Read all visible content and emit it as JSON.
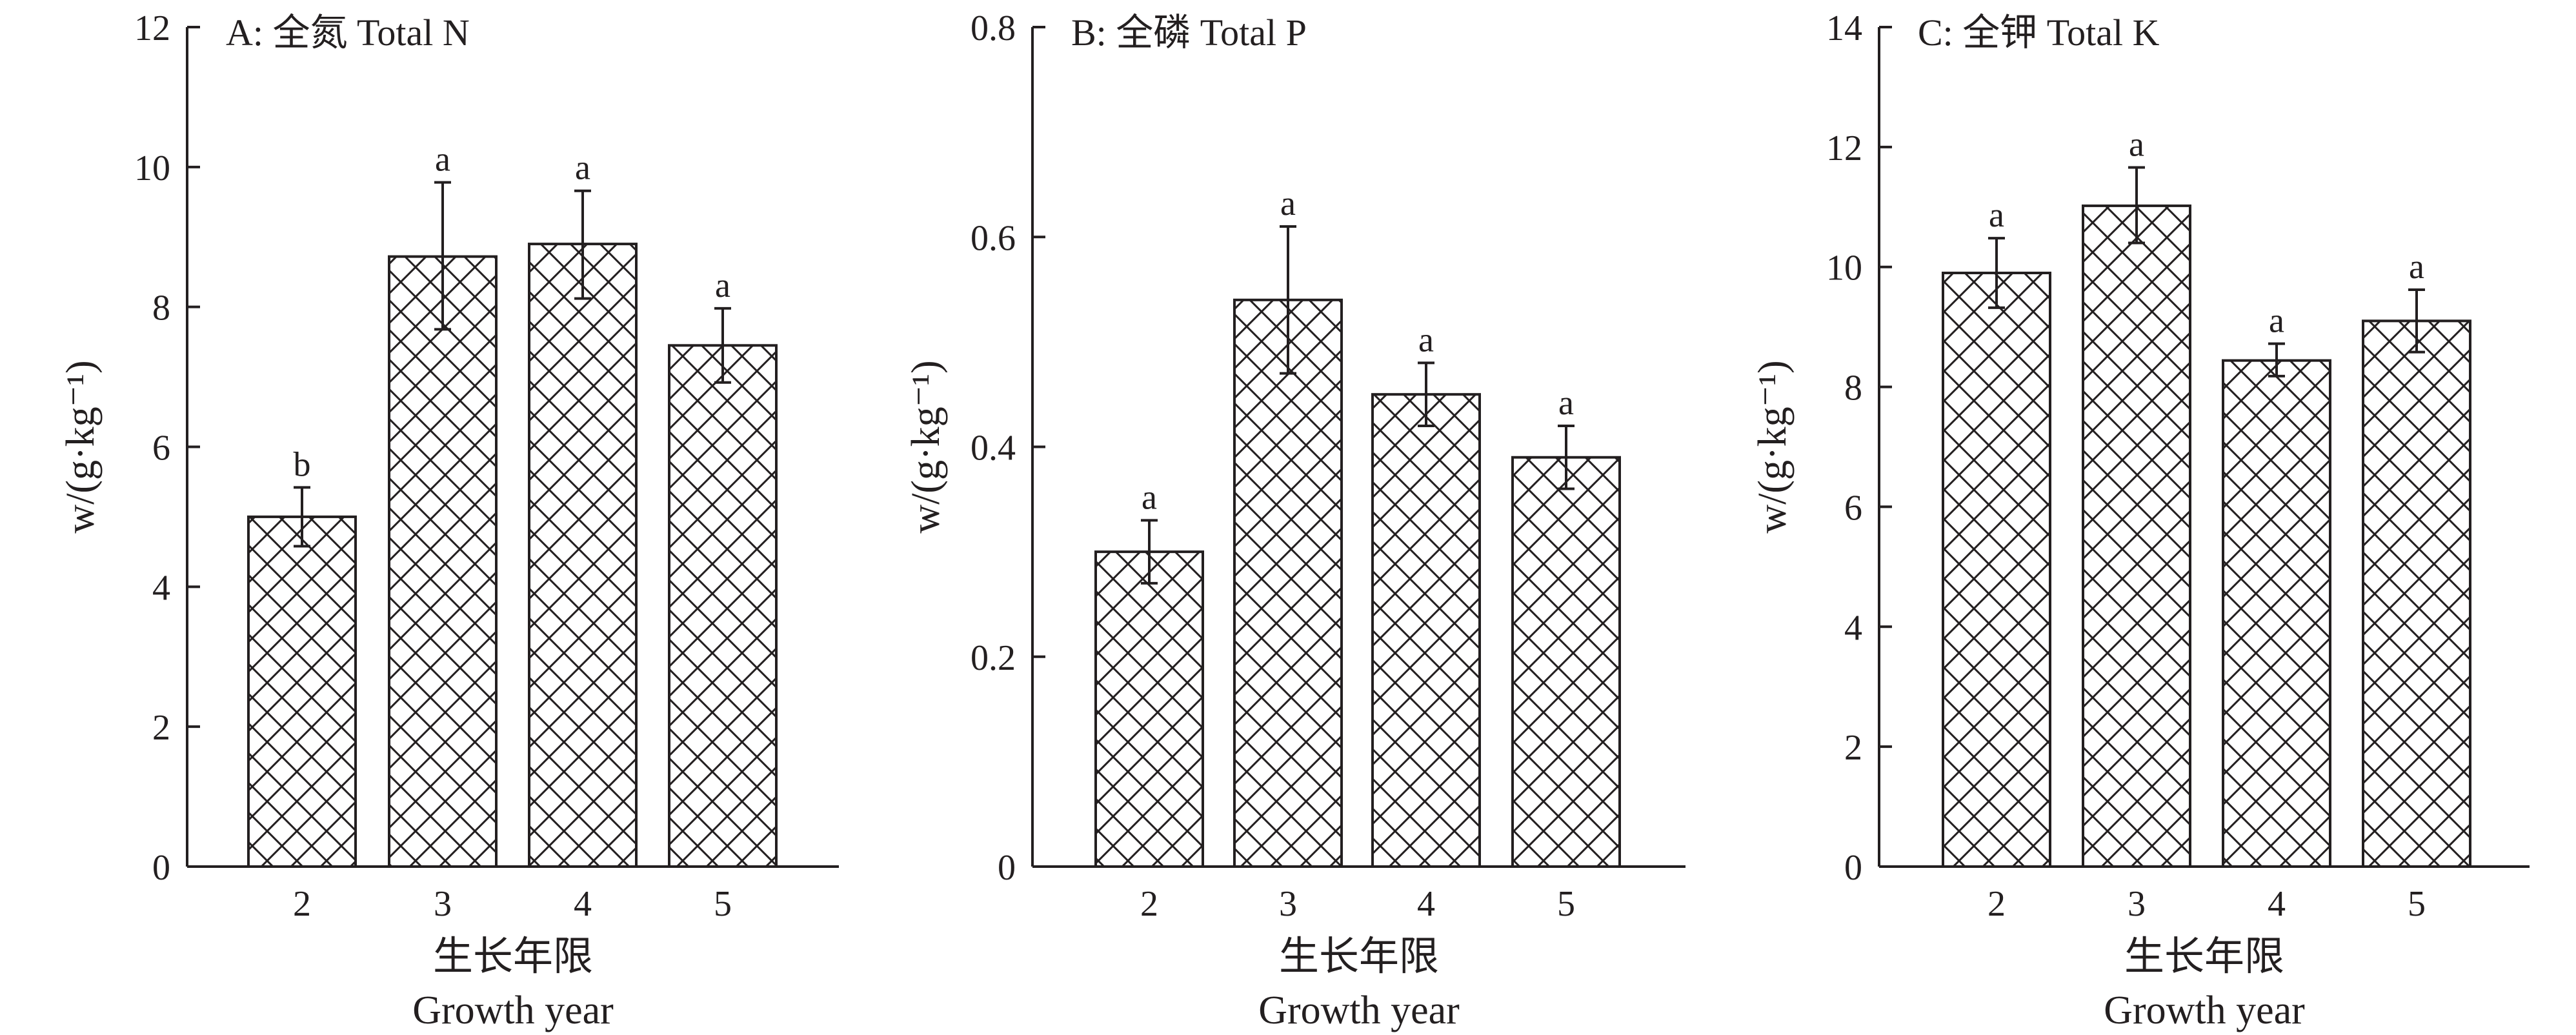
{
  "colors": {
    "ink": "#231f20",
    "background": "#ffffff"
  },
  "chart_data": [
    {
      "type": "bar",
      "title": "A: 全氮 Total N",
      "ylabel": "w/(g·kg⁻¹)",
      "xlabel": "生长年限",
      "xlabel_en": "Growth year",
      "categories": [
        "2",
        "3",
        "4",
        "5"
      ],
      "values": [
        5.0,
        8.72,
        8.9,
        7.45
      ],
      "error_low": [
        4.58,
        7.68,
        8.12,
        6.92
      ],
      "error_high": [
        5.42,
        9.78,
        9.66,
        7.98
      ],
      "significance": [
        "b",
        "a",
        "a",
        "a"
      ],
      "ylim": [
        0,
        12
      ],
      "yticks": [
        "0",
        "2",
        "4",
        "6",
        "8",
        "10",
        "12"
      ],
      "ytick_values": [
        0,
        2,
        4,
        6,
        8,
        10,
        12
      ],
      "bar_fill": "cross-hatch",
      "grid": false,
      "legend": "none"
    },
    {
      "type": "bar",
      "title": "B: 全磷 Total P",
      "ylabel": "w/(g·kg⁻¹)",
      "xlabel": "生长年限",
      "xlabel_en": "Growth year",
      "categories": [
        "2",
        "3",
        "4",
        "5"
      ],
      "values": [
        0.3,
        0.54,
        0.45,
        0.39
      ],
      "error_low": [
        0.27,
        0.47,
        0.42,
        0.36
      ],
      "error_high": [
        0.33,
        0.61,
        0.48,
        0.42
      ],
      "significance": [
        "a",
        "a",
        "a",
        "a"
      ],
      "ylim": [
        0,
        0.8
      ],
      "yticks": [
        "0",
        "0.2",
        "0.4",
        "0.6",
        "0.8"
      ],
      "ytick_values": [
        0,
        0.2,
        0.4,
        0.6,
        0.8
      ],
      "bar_fill": "cross-hatch",
      "grid": false,
      "legend": "none"
    },
    {
      "type": "bar",
      "title": "C: 全钾 Total K",
      "ylabel": "w/(g·kg⁻¹)",
      "xlabel": "生长年限",
      "xlabel_en": "Growth year",
      "categories": [
        "2",
        "3",
        "4",
        "5"
      ],
      "values": [
        9.9,
        11.02,
        8.44,
        9.1
      ],
      "error_low": [
        9.32,
        10.4,
        8.18,
        8.58
      ],
      "error_high": [
        10.48,
        11.66,
        8.72,
        9.62
      ],
      "significance": [
        "a",
        "a",
        "a",
        "a"
      ],
      "ylim": [
        0,
        14
      ],
      "yticks": [
        "0",
        "2",
        "4",
        "6",
        "8",
        "10",
        "12",
        "14"
      ],
      "ytick_values": [
        0,
        2,
        4,
        6,
        8,
        10,
        12,
        14
      ],
      "bar_fill": "cross-hatch",
      "grid": false,
      "legend": "none"
    }
  ]
}
